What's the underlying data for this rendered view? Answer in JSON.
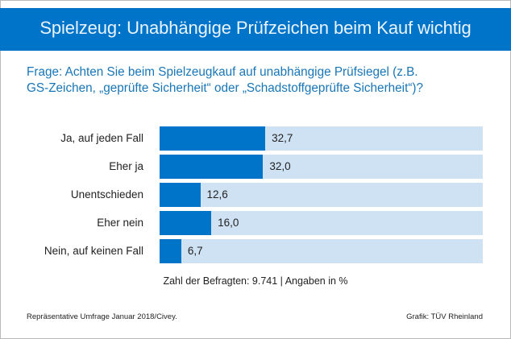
{
  "header": {
    "title": "Spielzeug: Unabhängige Prüfzeichen beim Kauf wichtig"
  },
  "question": {
    "line1": "Frage: Achten Sie beim Spielzeugkauf auf unabhängige Prüfsiegel (z.B.",
    "line2": "GS-Zeichen, „geprüfte Sicherheit“ oder „Schadstoffgeprüfte Sicherheit“)?"
  },
  "colors": {
    "header": "#0074c8",
    "bar": "#0074c8",
    "track": "#cfe2f4",
    "question": "#1976b6"
  },
  "chart_data": {
    "type": "bar",
    "orientation": "horizontal",
    "title": "Spielzeug: Unabhängige Prüfzeichen beim Kauf wichtig",
    "categories": [
      "Ja, auf jeden Fall",
      "Eher ja",
      "Unentschieden",
      "Eher nein",
      "Nein, auf keinen Fall"
    ],
    "values": [
      32.7,
      32.0,
      12.6,
      16.0,
      6.7
    ],
    "value_labels": [
      "32,7",
      "32,0",
      "12,6",
      "16,0",
      "6,7"
    ],
    "xlim": [
      0,
      100
    ],
    "unit": "%",
    "grid": false
  },
  "note": "Zahl der Befragten: 9.741  |  Angaben in %",
  "footer": {
    "source": "Repräsentative Umfrage Januar 2018/Civey.",
    "credit": "Grafik: TÜV Rheinland"
  }
}
